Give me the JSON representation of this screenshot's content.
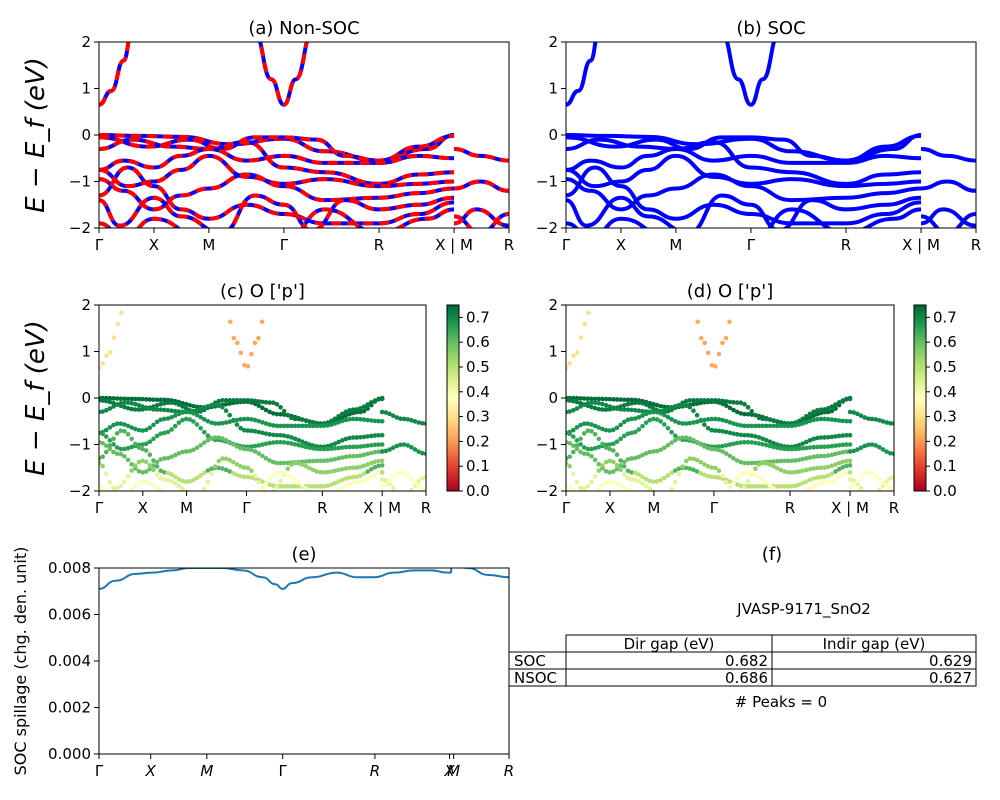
{
  "figure_id": "JVASP-9171_SnO2",
  "peaks_text": "# Peaks = 0",
  "colors": {
    "nsoc": "#ff0000",
    "soc": "#0000ff",
    "spillage": "#1f77b4"
  },
  "chart_data": [
    {
      "id": "a",
      "type": "line",
      "title": "(a) Non-SOC",
      "ylabel": "E − E_f (eV)",
      "ylim": [
        -2,
        2
      ],
      "yticks": [
        "−2",
        "−1",
        "0",
        "1",
        "2"
      ],
      "kpath": [
        "Γ",
        "X",
        "M",
        "Γ",
        "R",
        "X | M",
        "R"
      ],
      "kpos": [
        0,
        0.134,
        0.268,
        0.451,
        0.683,
        0.866,
        1.0
      ],
      "colorscale": null
    },
    {
      "id": "b",
      "type": "line",
      "title": "(b) SOC",
      "ylabel": "",
      "ylim": [
        -2,
        2
      ],
      "yticks": [
        "−2",
        "−1",
        "0",
        "1",
        "2"
      ],
      "kpath": [
        "Γ",
        "X",
        "M",
        "Γ",
        "R",
        "X | M",
        "R"
      ],
      "kpos": [
        0,
        0.134,
        0.268,
        0.451,
        0.683,
        0.866,
        1.0
      ],
      "colorscale": null
    },
    {
      "id": "c",
      "type": "scatter",
      "title": "(c)  O ['p']",
      "ylabel": "E − E_f (eV)",
      "ylim": [
        -2,
        2
      ],
      "yticks": [
        "−2",
        "−1",
        "0",
        "1",
        "2"
      ],
      "kpath": [
        "Γ",
        "X",
        "M",
        "Γ",
        "R",
        "X | M",
        "R"
      ],
      "kpos": [
        0,
        0.134,
        0.268,
        0.451,
        0.683,
        0.866,
        1.0
      ],
      "colorscale": {
        "name": "RdYlGn",
        "min": 0,
        "max": 0.75,
        "ticks": [
          "0.0",
          "0.1",
          "0.2",
          "0.3",
          "0.4",
          "0.5",
          "0.6",
          "0.7"
        ]
      }
    },
    {
      "id": "d",
      "type": "scatter",
      "title": "(d) O ['p']",
      "ylabel": "",
      "ylim": [
        -2,
        2
      ],
      "yticks": [
        "−2",
        "−1",
        "0",
        "1",
        "2"
      ],
      "kpath": [
        "Γ",
        "X",
        "M",
        "Γ",
        "R",
        "X | M",
        "R"
      ],
      "kpos": [
        0,
        0.134,
        0.268,
        0.451,
        0.683,
        0.866,
        1.0
      ],
      "colorscale": {
        "name": "RdYlGn",
        "min": 0,
        "max": 0.75,
        "ticks": [
          "0.0",
          "0.1",
          "0.2",
          "0.3",
          "0.4",
          "0.5",
          "0.6",
          "0.7"
        ]
      }
    },
    {
      "id": "e",
      "type": "line",
      "title": "(e)",
      "ylabel": "SOC spillage (chg. den. unit)",
      "ylim": [
        0,
        0.008
      ],
      "yticks": [
        "0.000",
        "0.002",
        "0.004",
        "0.006",
        "0.008"
      ],
      "kpath": [
        "Γ",
        "X",
        "M",
        "Γ",
        "R",
        "X",
        "M",
        "R"
      ],
      "kpos": [
        0,
        0.126,
        0.263,
        0.448,
        0.673,
        0.855,
        0.865,
        1.0
      ],
      "series": [
        {
          "x": [
            0,
            0.04,
            0.09,
            0.13,
            0.18,
            0.22,
            0.26,
            0.3,
            0.35,
            0.4,
            0.43,
            0.448,
            0.47,
            0.52,
            0.58,
            0.63,
            0.67,
            0.72,
            0.77,
            0.81,
            0.85,
            0.858,
            0.86,
            0.9,
            0.95,
            1.0
          ],
          "y": [
            0.0071,
            0.00745,
            0.00775,
            0.0078,
            0.0079,
            0.008,
            0.008,
            0.008,
            0.0079,
            0.0076,
            0.0073,
            0.0071,
            0.00735,
            0.0076,
            0.0078,
            0.0076,
            0.0076,
            0.0078,
            0.0079,
            0.0079,
            0.0078,
            0.0078,
            0.0081,
            0.008,
            0.0077,
            0.0076
          ]
        }
      ]
    },
    {
      "id": "f",
      "type": "table",
      "title": "(f)",
      "columns": [
        "",
        "Dir gap (eV)",
        "Indir gap (eV)"
      ],
      "rows": [
        {
          "label": "SOC",
          "dir_gap": "0.682",
          "indir_gap": "0.629"
        },
        {
          "label": "NSOC",
          "dir_gap": "0.686",
          "indir_gap": "0.627"
        }
      ]
    }
  ]
}
